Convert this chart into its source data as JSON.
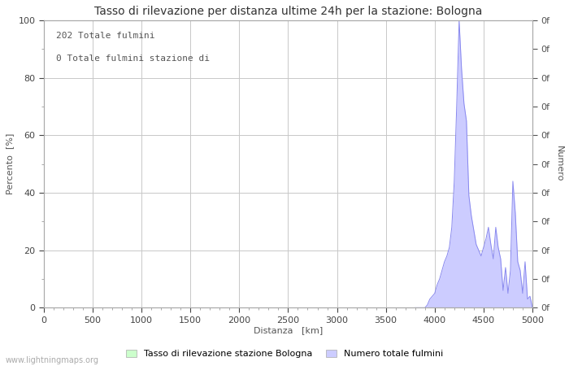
{
  "title": "Tasso di rilevazione per distanza ultime 24h per la stazione: Bologna",
  "xlabel": "Distanza   [km]",
  "ylabel_left": "Percento  [%]",
  "ylabel_right": "Numero",
  "annotation_line1": "202 Totale fulmini",
  "annotation_line2": "0 Totale fulmini stazione di",
  "watermark": "www.lightningmaps.org",
  "legend_label1": "Tasso di rilevazione stazione Bologna",
  "legend_label2": "Numero totale fulmini",
  "xlim": [
    0,
    5000
  ],
  "ylim": [
    0,
    100
  ],
  "xticks": [
    0,
    500,
    1000,
    1500,
    2000,
    2500,
    3000,
    3500,
    4000,
    4500,
    5000
  ],
  "yticks_left": [
    0,
    20,
    40,
    60,
    80,
    100
  ],
  "yticks_right_count": 11,
  "background_color": "#ffffff",
  "grid_color": "#c8c8c8",
  "fill_color_detection": "#ccffcc",
  "fill_color_lightning": "#ccccff",
  "line_color": "#8888ee",
  "title_fontsize": 10,
  "axis_label_fontsize": 8,
  "tick_fontsize": 8,
  "annotation_fontsize": 8,
  "watermark_fontsize": 7,
  "legend_fontsize": 8,
  "lightning_x": [
    3800,
    3825,
    3850,
    3875,
    3900,
    3925,
    3950,
    3975,
    4000,
    4025,
    4050,
    4075,
    4100,
    4125,
    4150,
    4175,
    4200,
    4225,
    4250,
    4275,
    4300,
    4325,
    4350,
    4375,
    4400,
    4425,
    4450,
    4475,
    4500,
    4525,
    4550,
    4575,
    4600,
    4625,
    4650,
    4675,
    4700,
    4725,
    4750,
    4775,
    4800,
    4825,
    4850,
    4875,
    4900,
    4925,
    4950,
    4975,
    5000
  ],
  "lightning_y": [
    0,
    0,
    0,
    0,
    0,
    1,
    3,
    4,
    5,
    8,
    10,
    13,
    16,
    18,
    21,
    28,
    44,
    70,
    100,
    83,
    71,
    65,
    39,
    32,
    27,
    22,
    20,
    18,
    21,
    24,
    28,
    22,
    17,
    28,
    21,
    17,
    6,
    14,
    5,
    13,
    44,
    33,
    16,
    13,
    5,
    16,
    3,
    4,
    0
  ]
}
